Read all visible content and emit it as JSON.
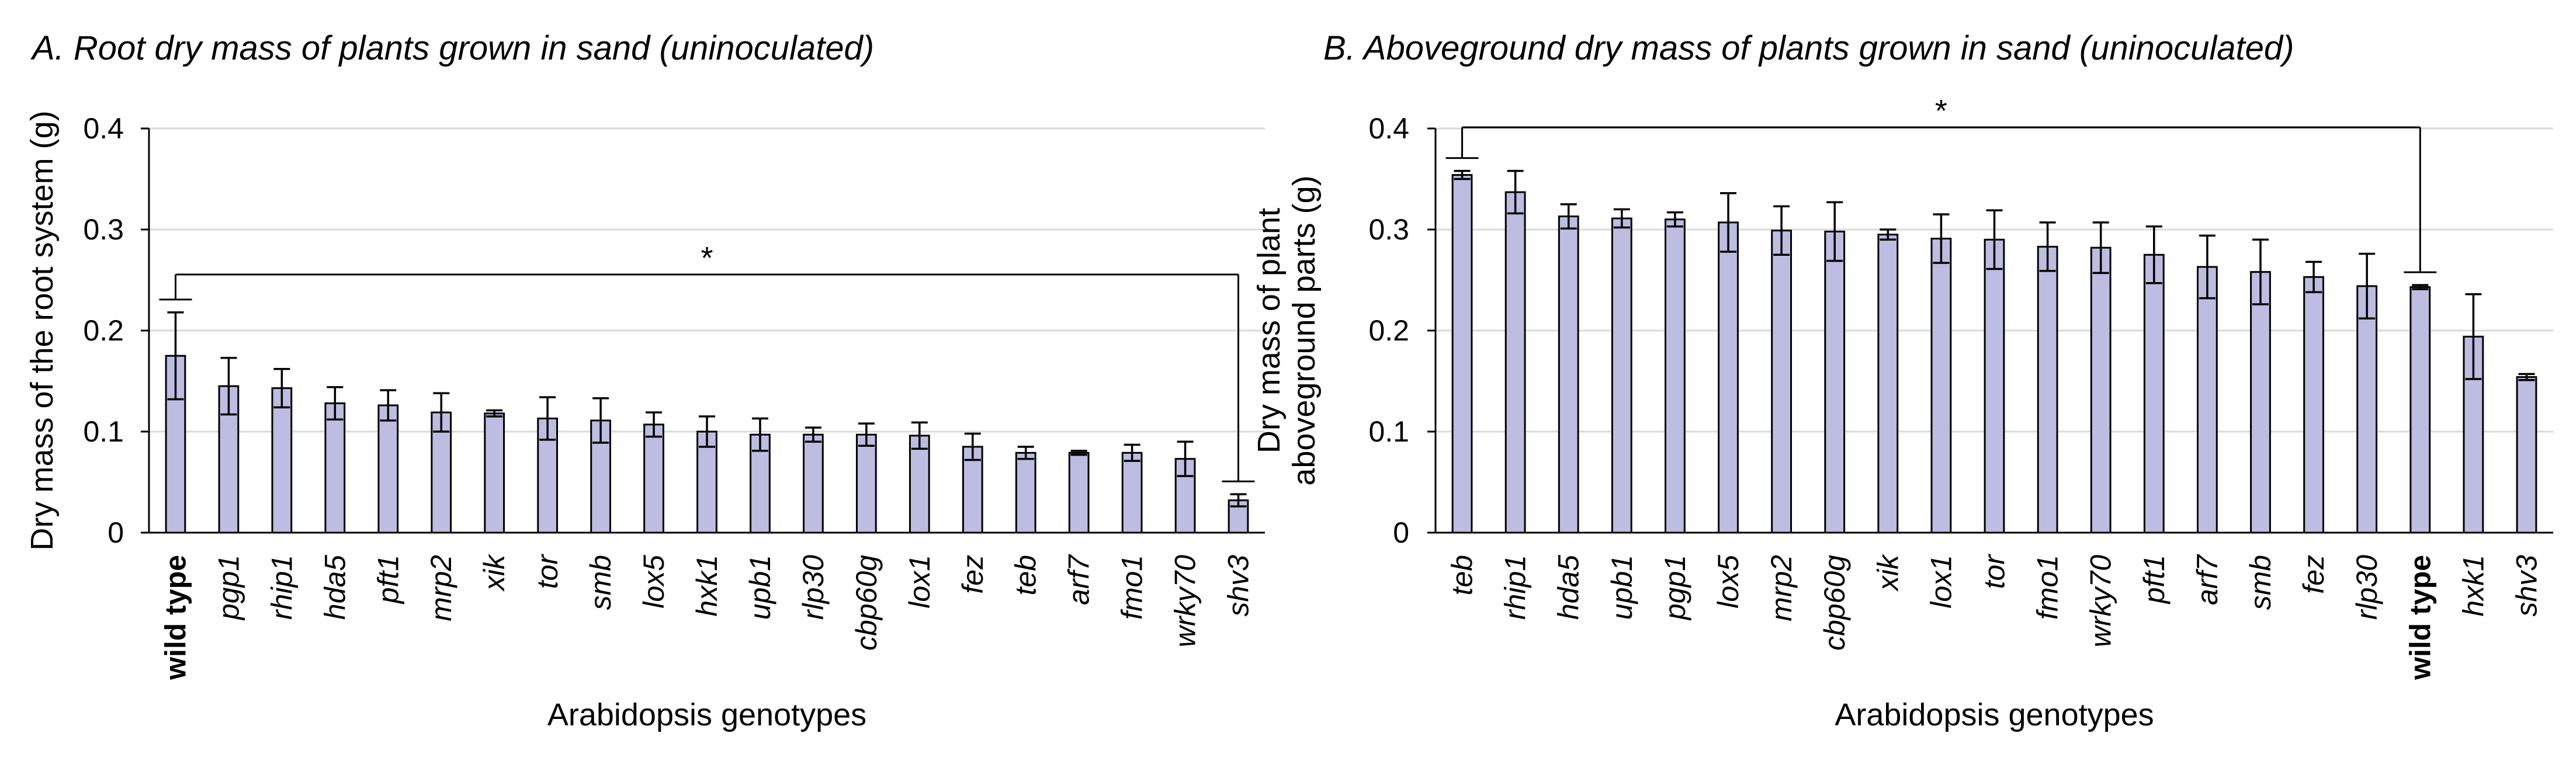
{
  "chart_data": [
    {
      "type": "bar",
      "panel_title": "A. Root dry mass of plants grown in sand (uninoculated)",
      "xlabel": "Arabidopsis genotypes",
      "ylabel": "Dry mass of the root system (g)",
      "ylabel_lines": [
        "Dry mass of the root system (g)"
      ],
      "ylim": [
        0,
        0.4
      ],
      "yticks": [
        "0",
        "0.1",
        "0.2",
        "0.3",
        "0.4"
      ],
      "grid": true,
      "bar_color": "#bcbde0",
      "highlight_category": "wild type",
      "categories": [
        "wild type",
        "pgp1",
        "rhip1",
        "hda5",
        "pft1",
        "mrp2",
        "xik",
        "tor",
        "smb",
        "lox5",
        "hxk1",
        "upb1",
        "rlp30",
        "cbp60g",
        "lox1",
        "fez",
        "teb",
        "arf7",
        "fmo1",
        "wrky70",
        "shv3"
      ],
      "values": [
        0.175,
        0.145,
        0.143,
        0.128,
        0.126,
        0.119,
        0.118,
        0.113,
        0.111,
        0.107,
        0.1,
        0.097,
        0.097,
        0.097,
        0.096,
        0.085,
        0.079,
        0.079,
        0.079,
        0.073,
        0.032
      ],
      "errors": [
        0.043,
        0.028,
        0.019,
        0.016,
        0.015,
        0.019,
        0.003,
        0.021,
        0.022,
        0.012,
        0.015,
        0.016,
        0.007,
        0.011,
        0.013,
        0.013,
        0.006,
        0.002,
        0.008,
        0.017,
        0.006
      ],
      "significance": {
        "from": "wild type",
        "to": "shv3",
        "label": "*",
        "level": 0.255
      }
    },
    {
      "type": "bar",
      "panel_title": "B. Aboveground dry mass of plants grown in sand (uninoculated)",
      "xlabel": "Arabidopsis genotypes",
      "ylabel": "Dry mass of plant aboveground parts (g)",
      "ylabel_lines": [
        "Dry mass of plant",
        "aboveground parts (g)"
      ],
      "ylim": [
        0,
        0.4
      ],
      "yticks": [
        "0",
        "0.1",
        "0.2",
        "0.3",
        "0.4"
      ],
      "grid": true,
      "bar_color": "#bcbde0",
      "highlight_category": "wild type",
      "categories": [
        "teb",
        "rhip1",
        "hda5",
        "upb1",
        "pgp1",
        "lox5",
        "mrp2",
        "cbp60g",
        "xik",
        "lox1",
        "tor",
        "fmo1",
        "wrky70",
        "pft1",
        "arf7",
        "smb",
        "fez",
        "rlp30",
        "wild type",
        "hxk1",
        "shv3"
      ],
      "values": [
        0.354,
        0.337,
        0.313,
        0.311,
        0.31,
        0.307,
        0.299,
        0.298,
        0.295,
        0.291,
        0.29,
        0.283,
        0.282,
        0.275,
        0.263,
        0.258,
        0.253,
        0.244,
        0.243,
        0.194,
        0.154
      ],
      "errors": [
        0.004,
        0.021,
        0.012,
        0.009,
        0.007,
        0.029,
        0.024,
        0.029,
        0.005,
        0.024,
        0.029,
        0.024,
        0.025,
        0.028,
        0.031,
        0.032,
        0.015,
        0.032,
        0.002,
        0.042,
        0.003
      ],
      "significance": {
        "from": "teb",
        "to": "wild type",
        "label": "*",
        "level": 0.395
      }
    }
  ]
}
